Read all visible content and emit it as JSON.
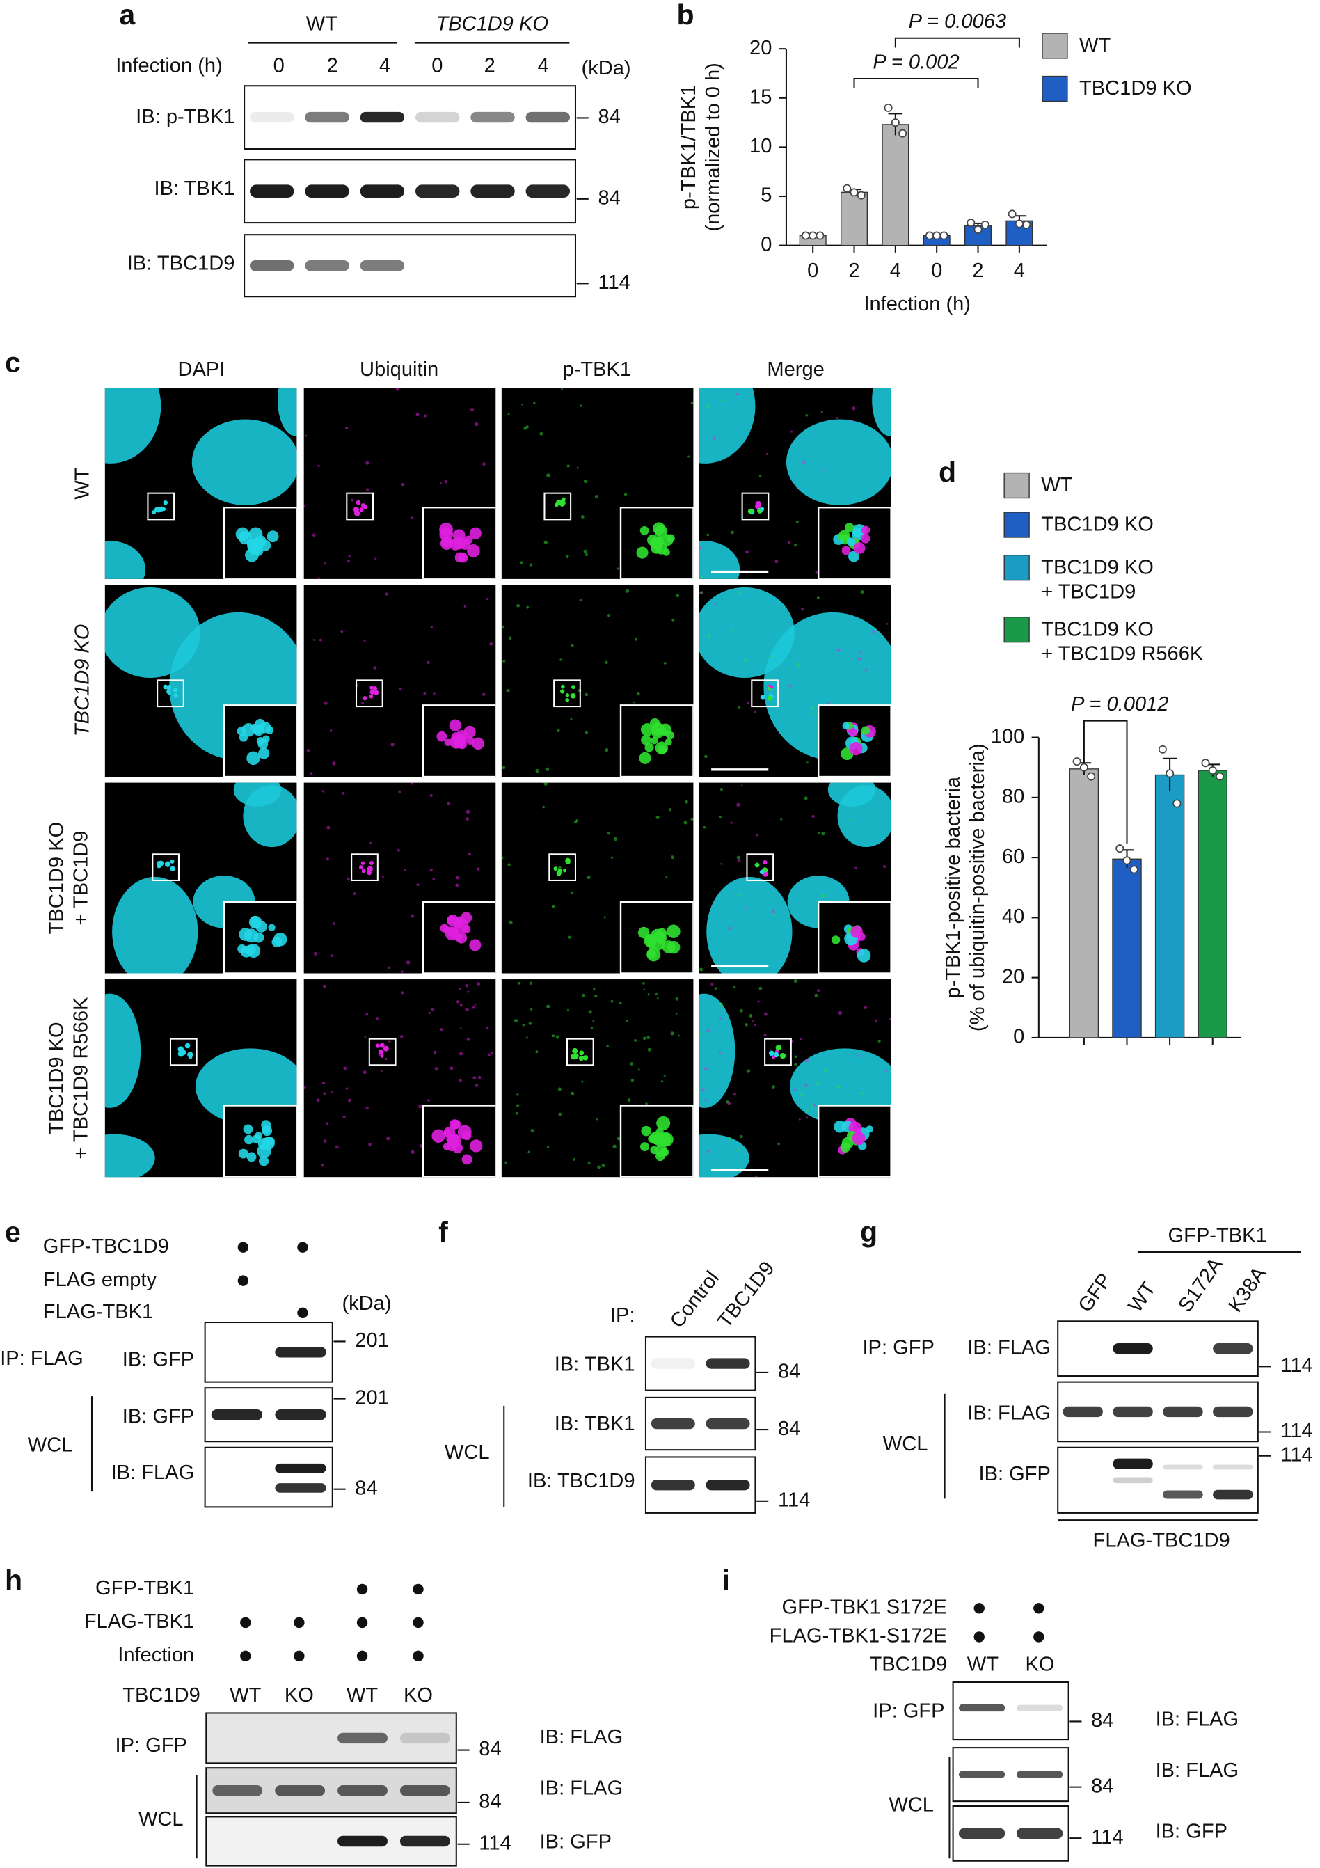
{
  "panels": {
    "a": {
      "letter": "a",
      "groups": [
        "WT",
        "TBC1D9 KO"
      ],
      "row_label": "Infection (h)",
      "timepoints": [
        "0",
        "2",
        "4",
        "0",
        "2",
        "4"
      ],
      "unit": "(kDa)",
      "blots": [
        {
          "label": "IB: p-TBK1",
          "marker": "84"
        },
        {
          "label": "IB: TBK1",
          "marker": "84"
        },
        {
          "label": "IB: TBC1D9",
          "marker": "114"
        }
      ]
    },
    "b": {
      "letter": "b"
    },
    "c": {
      "letter": "c",
      "columns": [
        "DAPI",
        "Ubiquitin",
        "p-TBK1",
        "Merge"
      ],
      "rows": [
        "WT",
        "TBC1D9 KO",
        "TBC1D9 KO\n+ TBC1D9",
        "TBC1D9 KO\n+ TBC1D9 R566K"
      ]
    },
    "d": {
      "letter": "d"
    },
    "e": {
      "letter": "e",
      "conditions": [
        "GFP-TBC1D9",
        "FLAG empty",
        "FLAG-TBK1"
      ],
      "unit": "(kDa)",
      "ip": "IP: FLAG",
      "wcl": "WCL",
      "blots": [
        {
          "label": "IB: GFP",
          "marker": "201"
        },
        {
          "label": "IB: GFP",
          "marker": "201"
        },
        {
          "label": "IB: FLAG",
          "marker": "84"
        }
      ]
    },
    "f": {
      "letter": "f",
      "ip": "IP:",
      "lanes": [
        "Control",
        "TBC1D9"
      ],
      "wcl": "WCL",
      "blots": [
        {
          "label": "IB: TBK1",
          "marker": "84"
        },
        {
          "label": "IB: TBK1",
          "marker": "84"
        },
        {
          "label": "IB: TBC1D9",
          "marker": "114"
        }
      ]
    },
    "g": {
      "letter": "g",
      "group": "GFP-TBK1",
      "lanes": [
        "GFP",
        "WT",
        "S172A",
        "K38A"
      ],
      "ip": "IP: GFP",
      "wcl": "WCL",
      "footer": "FLAG-TBC1D9",
      "blots": [
        {
          "label": "IB: FLAG",
          "marker": "114"
        },
        {
          "label": "IB: FLAG",
          "marker": "114"
        },
        {
          "label": "IB: GFP",
          "marker": "114"
        }
      ]
    },
    "h": {
      "letter": "h",
      "conditions": [
        "GFP-TBK1",
        "FLAG-TBK1",
        "Infection"
      ],
      "row": "TBC1D9",
      "lanes": [
        "WT",
        "KO",
        "WT",
        "KO"
      ],
      "ip": "IP: GFP",
      "wcl": "WCL",
      "blots": [
        {
          "label": "IB: FLAG",
          "marker": "84"
        },
        {
          "label": "IB: FLAG",
          "marker": "84"
        },
        {
          "label": "IB: GFP",
          "marker": "114"
        }
      ]
    },
    "i": {
      "letter": "i",
      "conditions": [
        "GFP-TBK1 S172E",
        "FLAG-TBK1-S172E"
      ],
      "row": "TBC1D9",
      "lanes": [
        "WT",
        "KO"
      ],
      "ip": "IP: GFP",
      "wcl": "WCL",
      "blots": [
        {
          "label": "IB: FLAG",
          "marker": "84"
        },
        {
          "label": "IB: FLAG",
          "marker": "84"
        },
        {
          "label": "IB: GFP",
          "marker": "114"
        }
      ]
    }
  },
  "chart_data": [
    {
      "type": "bar",
      "categories": [
        "0",
        "2",
        "4",
        "0",
        "2",
        "4"
      ],
      "x_label": "Infection (h)",
      "y_label": "p-TBK1/TBK1\n(normalized to 0 h)",
      "ylim": [
        0,
        20
      ],
      "yticks": [
        0,
        5,
        10,
        15,
        20
      ],
      "annotations": [
        "P = 0.0063",
        "P = 0.002"
      ],
      "series": [
        {
          "name": "WT",
          "color": "#b3b3b3",
          "values": [
            1,
            5.4,
            12.3,
            null,
            null,
            null
          ],
          "errors": [
            0.05,
            0.3,
            1.1,
            null,
            null,
            null
          ],
          "points": [
            [
              1,
              1,
              1
            ],
            [
              5.8,
              5.4,
              5.1
            ],
            [
              14,
              12.5,
              11.4
            ],
            null,
            null,
            null
          ]
        },
        {
          "name": "TBC1D9 KO",
          "color": "#1f5fc4",
          "values": [
            null,
            null,
            null,
            1,
            2,
            2.5
          ],
          "errors": [
            null,
            null,
            null,
            0.05,
            0.25,
            0.5
          ],
          "points": [
            null,
            null,
            null,
            [
              1,
              1,
              1
            ],
            [
              2.3,
              1.6,
              2.1
            ],
            [
              3.2,
              2.2,
              2.1
            ]
          ]
        }
      ]
    },
    {
      "type": "bar",
      "categories": [
        null,
        null,
        null,
        null
      ],
      "y_label": "p-TBK1-positive bacteria\n(% of ubiquitin-positive bacteria)",
      "ylim": [
        0,
        100
      ],
      "yticks": [
        0,
        20,
        40,
        60,
        80,
        100
      ],
      "annotations": [
        "P = 0.0012"
      ],
      "series": [
        {
          "name": "WT",
          "color": "#b3b3b3",
          "values": [
            89.5,
            null,
            null,
            null
          ],
          "errors": [
            2,
            null,
            null,
            null
          ],
          "points": [
            [
              92,
              90,
              87
            ],
            null,
            null,
            null
          ]
        },
        {
          "name": "TBC1D9 KO",
          "color": "#1f5fc4",
          "values": [
            null,
            59.5,
            null,
            null
          ],
          "errors": [
            null,
            3,
            null,
            null
          ],
          "points": [
            null,
            [
              63,
              59,
              56
            ],
            null,
            null
          ]
        },
        {
          "name": "TBC1D9 KO\n+ TBC1D9",
          "color": "#1a9cc4",
          "values": [
            null,
            null,
            87.5,
            null
          ],
          "errors": [
            null,
            null,
            5.5,
            null
          ],
          "points": [
            null,
            null,
            [
              96,
              88,
              78
            ],
            null
          ]
        },
        {
          "name": "TBC1D9 KO\n+ TBC1D9 R566K",
          "color": "#1a9a48",
          "values": [
            null,
            null,
            null,
            89
          ],
          "errors": [
            null,
            null,
            null,
            2
          ],
          "points": [
            null,
            null,
            null,
            [
              91.5,
              89,
              87
            ]
          ]
        }
      ]
    }
  ]
}
